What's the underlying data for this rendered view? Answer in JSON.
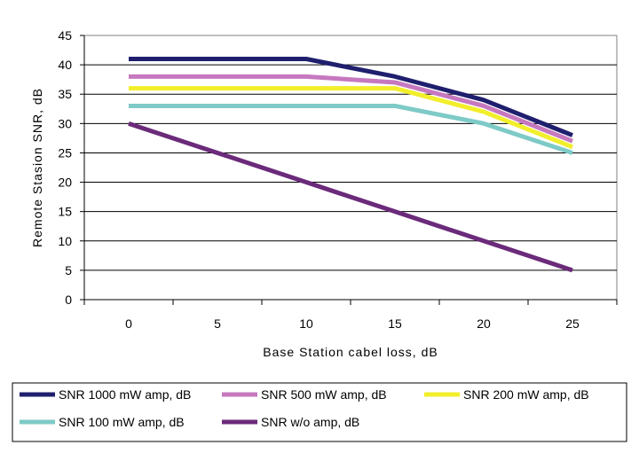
{
  "chart_data": {
    "type": "line",
    "title": "",
    "xlabel": "Base Station cabel loss, dB",
    "ylabel": "Remote Stasion SNR, dB",
    "x": [
      0,
      5,
      10,
      15,
      20,
      25
    ],
    "xticks": [
      "0",
      "5",
      "10",
      "15",
      "20",
      "25"
    ],
    "xlim": [
      -2.5,
      27.5
    ],
    "yticks": [
      "0",
      "5",
      "10",
      "15",
      "20",
      "25",
      "30",
      "35",
      "40",
      "45"
    ],
    "ylim": [
      0,
      45
    ],
    "grid": "horizontal",
    "legend_position": "bottom",
    "series": [
      {
        "name": "SNR 1000 mW amp, dB",
        "color": "#1f1f6e",
        "values": [
          41,
          41,
          41,
          38,
          34,
          28
        ]
      },
      {
        "name": "SNR 500 mW amp, dB",
        "color": "#c678bf",
        "values": [
          38,
          38,
          38,
          37,
          33,
          27
        ]
      },
      {
        "name": "SNR 200 mW amp, dB",
        "color": "#f2ee2a",
        "values": [
          36,
          36,
          36,
          36,
          32,
          26
        ]
      },
      {
        "name": "SNR 100 mW amp, dB",
        "color": "#7ecac7",
        "values": [
          33,
          33,
          33,
          33,
          30,
          25
        ]
      },
      {
        "name": "SNR w/o amp, dB",
        "color": "#6b2a7a",
        "values": [
          30,
          25,
          20,
          15,
          10,
          5
        ]
      }
    ]
  }
}
